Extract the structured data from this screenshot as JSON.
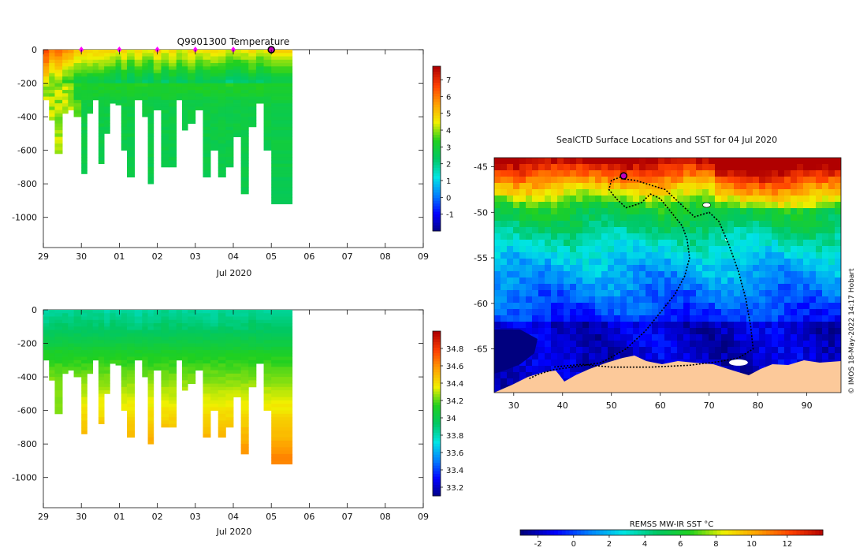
{
  "chart_data": [
    {
      "type": "heatmap",
      "title": "Q9901300  Temperature",
      "xlabel": "Jul 2020",
      "x_ticks": [
        "29",
        "30",
        "01",
        "02",
        "03",
        "04",
        "05",
        "06",
        "07",
        "08",
        "09"
      ],
      "x_range_days": [
        29,
        39
      ],
      "y_ticks": [
        0,
        -200,
        -400,
        -600,
        -800,
        -1000
      ],
      "ylim": [
        -1180,
        0
      ],
      "colorbar": {
        "min": -2,
        "max": 7.8,
        "ticks": [
          7,
          6,
          5,
          4,
          3,
          2,
          1,
          0,
          -1
        ]
      },
      "profiles": {
        "start_day": [
          29.0,
          29.15,
          29.3,
          29.5,
          29.65,
          29.8,
          30.0,
          30.15,
          30.3,
          30.45,
          30.6,
          30.75,
          30.9,
          31.05,
          31.2,
          31.4,
          31.6,
          31.75,
          31.9,
          32.1,
          32.3,
          32.5,
          32.65,
          32.8,
          33.0,
          33.2,
          33.4,
          33.6,
          33.8,
          34.0,
          34.2,
          34.4,
          34.6,
          34.8,
          35.0
        ],
        "max_depth": [
          300,
          420,
          620,
          380,
          360,
          400,
          740,
          380,
          300,
          680,
          500,
          320,
          330,
          600,
          760,
          300,
          400,
          800,
          360,
          700,
          700,
          300,
          480,
          440,
          360,
          760,
          600,
          760,
          700,
          520,
          860,
          460,
          320,
          600,
          920
        ]
      },
      "markers_days": [
        30,
        31,
        32,
        33,
        34
      ],
      "current_day": 35
    },
    {
      "type": "heatmap",
      "title": "",
      "xlabel": "Jul 2020",
      "x_ticks": [
        "29",
        "30",
        "01",
        "02",
        "03",
        "04",
        "05",
        "06",
        "07",
        "08",
        "09"
      ],
      "y_ticks": [
        0,
        -200,
        -400,
        -600,
        -800,
        -1000
      ],
      "ylim": [
        -1180,
        0
      ],
      "colorbar": {
        "min": 33.1,
        "max": 35.0,
        "ticks": [
          34.8,
          34.6,
          34.4,
          34.2,
          34,
          33.8,
          33.6,
          33.4,
          33.2
        ]
      }
    },
    {
      "type": "heatmap",
      "title": "SealCTD Surface Locations and SST for 04 Jul 2020",
      "x_ticks": [
        30,
        40,
        50,
        60,
        70,
        80,
        90
      ],
      "y_ticks": [
        -45,
        -50,
        -55,
        -60,
        -65
      ],
      "xlim": [
        26,
        97
      ],
      "ylim": [
        -69.8,
        -44
      ],
      "colorbar_label": "REMSS MW-IR SST °C",
      "colorbar": {
        "min": -3,
        "max": 14,
        "ticks": [
          -2,
          0,
          2,
          4,
          6,
          8,
          10,
          12
        ]
      },
      "current_position": [
        52.5,
        -46.0
      ],
      "track": [
        [
          52.5,
          -46.0
        ],
        [
          50.0,
          -46.5
        ],
        [
          49.5,
          -47.5
        ],
        [
          51.0,
          -48.5
        ],
        [
          53.0,
          -49.5
        ],
        [
          56.0,
          -49.0
        ],
        [
          58.0,
          -48.0
        ],
        [
          60.0,
          -48.5
        ],
        [
          61.5,
          -49.5
        ],
        [
          63.0,
          -50.5
        ],
        [
          64.5,
          -51.5
        ],
        [
          65.5,
          -53.0
        ],
        [
          66.0,
          -55.0
        ],
        [
          65.0,
          -57.0
        ],
        [
          63.0,
          -59.0
        ],
        [
          60.0,
          -61.0
        ],
        [
          57.0,
          -63.0
        ],
        [
          53.0,
          -65.0
        ],
        [
          48.0,
          -66.5
        ],
        [
          42.0,
          -67.0
        ],
        [
          38.0,
          -67.3
        ],
        [
          35.0,
          -67.8
        ],
        [
          33.0,
          -68.3
        ]
      ],
      "track2": [
        [
          52.0,
          -46.3
        ],
        [
          55.0,
          -46.5
        ],
        [
          58.0,
          -47.0
        ],
        [
          61.0,
          -47.5
        ],
        [
          64.0,
          -49.0
        ],
        [
          67.0,
          -50.5
        ],
        [
          70.0,
          -50.0
        ],
        [
          72.0,
          -51.0
        ],
        [
          74.0,
          -53.5
        ],
        [
          76.0,
          -56.5
        ],
        [
          77.5,
          -59.5
        ],
        [
          78.5,
          -62.5
        ],
        [
          79.0,
          -65.0
        ],
        [
          76.0,
          -66.0
        ],
        [
          72.0,
          -66.4
        ],
        [
          66.0,
          -66.8
        ],
        [
          58.0,
          -67.0
        ],
        [
          50.0,
          -67.0
        ],
        [
          44.0,
          -66.7
        ],
        [
          38.0,
          -67.0
        ]
      ]
    }
  ],
  "colors": {
    "jet": [
      "#00007f",
      "#0000ff",
      "#0080ff",
      "#00e5e5",
      "#00c864",
      "#20d020",
      "#f0f000",
      "#ffa000",
      "#ff4000",
      "#b00000"
    ],
    "land": "#fcc99a",
    "marker": "#ff00ff",
    "track": "#000000"
  },
  "watermark": "© IMOS 18-May-2022 14:17 Hobart"
}
